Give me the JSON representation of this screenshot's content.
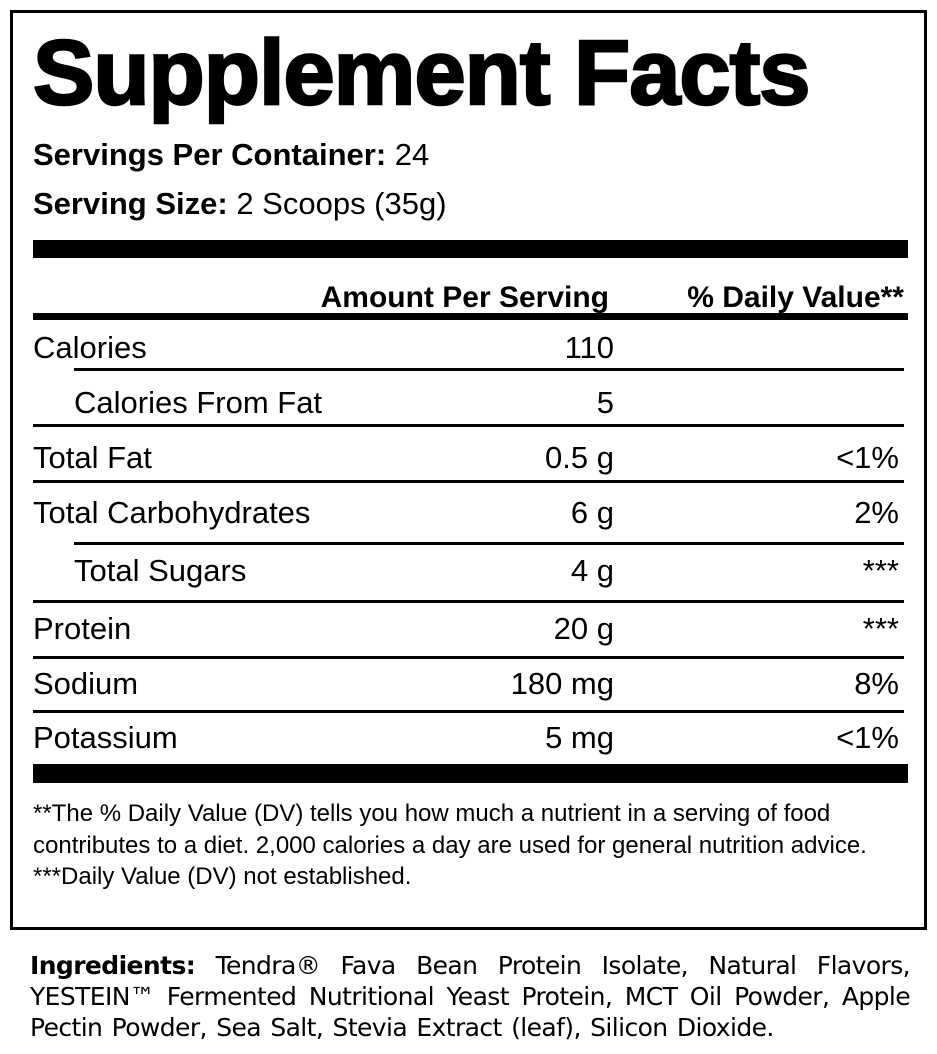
{
  "title": "Supplement Facts",
  "servings_per_container": {
    "label": "Servings Per Container:",
    "value": "24"
  },
  "serving_size": {
    "label": "Serving Size:",
    "value": "2 Scoops (35g)"
  },
  "header": {
    "amount": "Amount Per Serving",
    "daily_value": "% Daily Value**"
  },
  "rows": [
    {
      "label": "Calories",
      "amount": "110",
      "dv": "",
      "indent": false
    },
    {
      "label": "Calories From Fat",
      "amount": "5",
      "dv": "",
      "indent": true
    },
    {
      "label": "Total Fat",
      "amount": "0.5 g",
      "dv": "<1%",
      "indent": false
    },
    {
      "label": "Total Carbohydrates",
      "amount": "6 g",
      "dv": "2%",
      "indent": false
    },
    {
      "label": "Total Sugars",
      "amount": "4 g",
      "dv": "***",
      "indent": true
    },
    {
      "label": "Protein",
      "amount": "20 g",
      "dv": "***",
      "indent": false
    },
    {
      "label": "Sodium",
      "amount": "180 mg",
      "dv": "8%",
      "indent": false
    },
    {
      "label": "Potassium",
      "amount": "5 mg",
      "dv": "<1%",
      "indent": false
    }
  ],
  "footnotes": [
    "**The % Daily Value (DV) tells you how much a nutrient in a serving of food contributes to a diet. 2,000 calories a day are used for general nutrition advice.",
    "***Daily Value (DV) not established."
  ],
  "ingredients": {
    "label": "Ingredients:",
    "text": "Tendra® Fava Bean Protein Isolate, Natural Flavors, YESTEIN™ Fermented Nutritional Yeast Protein, MCT Oil Powder, Apple Pectin Powder, Sea Salt, Stevia Extract (leaf), Silicon Dioxide."
  }
}
